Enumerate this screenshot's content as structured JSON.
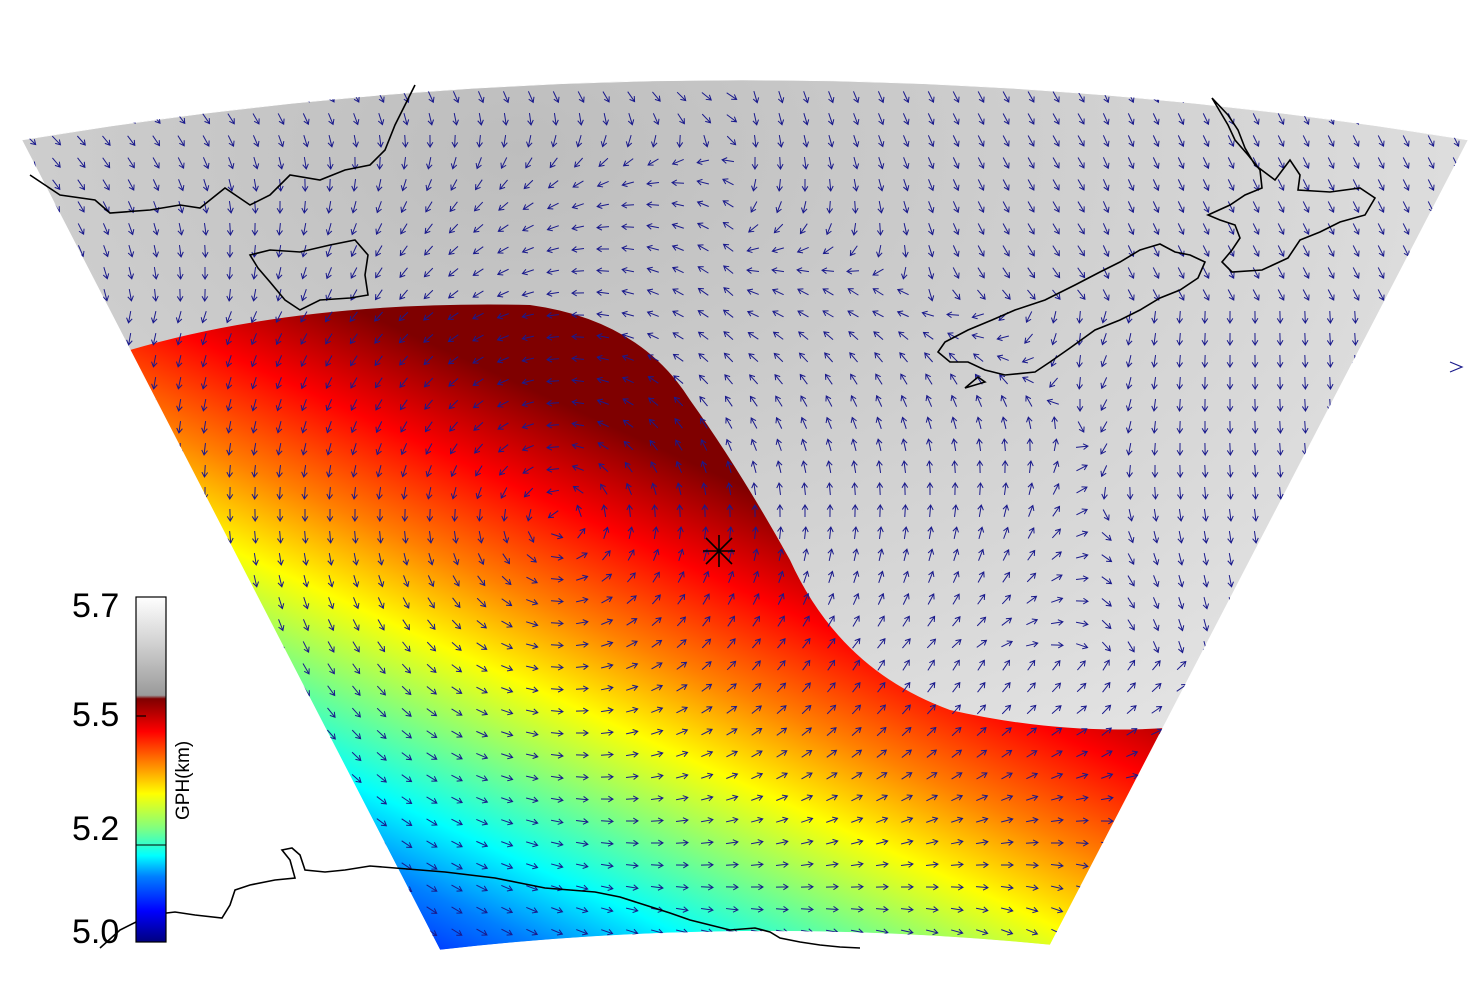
{
  "figure": {
    "type": "geopotential-height-map",
    "field": "GPH",
    "vectors": "wind-arrows",
    "marker": "asterisk",
    "colors": {
      "arrow": "#1a1a8c",
      "coast": "#000000",
      "high": "#d9d9d9"
    }
  },
  "colorbar": {
    "title": "GPH(km)",
    "ticks": [
      "5.7",
      "5.5",
      "5.2",
      "5.0"
    ],
    "range": [
      5.0,
      5.7
    ],
    "stops": [
      {
        "v": 5.0,
        "c": "#00007f"
      },
      {
        "v": 5.06,
        "c": "#0000ff"
      },
      {
        "v": 5.13,
        "c": "#0080ff"
      },
      {
        "v": 5.17,
        "c": "#00ffff"
      },
      {
        "v": 5.23,
        "c": "#80ff80"
      },
      {
        "v": 5.3,
        "c": "#ffff00"
      },
      {
        "v": 5.36,
        "c": "#ff8000"
      },
      {
        "v": 5.43,
        "c": "#ff0000"
      },
      {
        "v": 5.49,
        "c": "#7f0000"
      },
      {
        "v": 5.5,
        "c": "#9a9a9a"
      },
      {
        "v": 5.6,
        "c": "#cfcfcf"
      },
      {
        "v": 5.7,
        "c": "#ffffff"
      }
    ]
  }
}
